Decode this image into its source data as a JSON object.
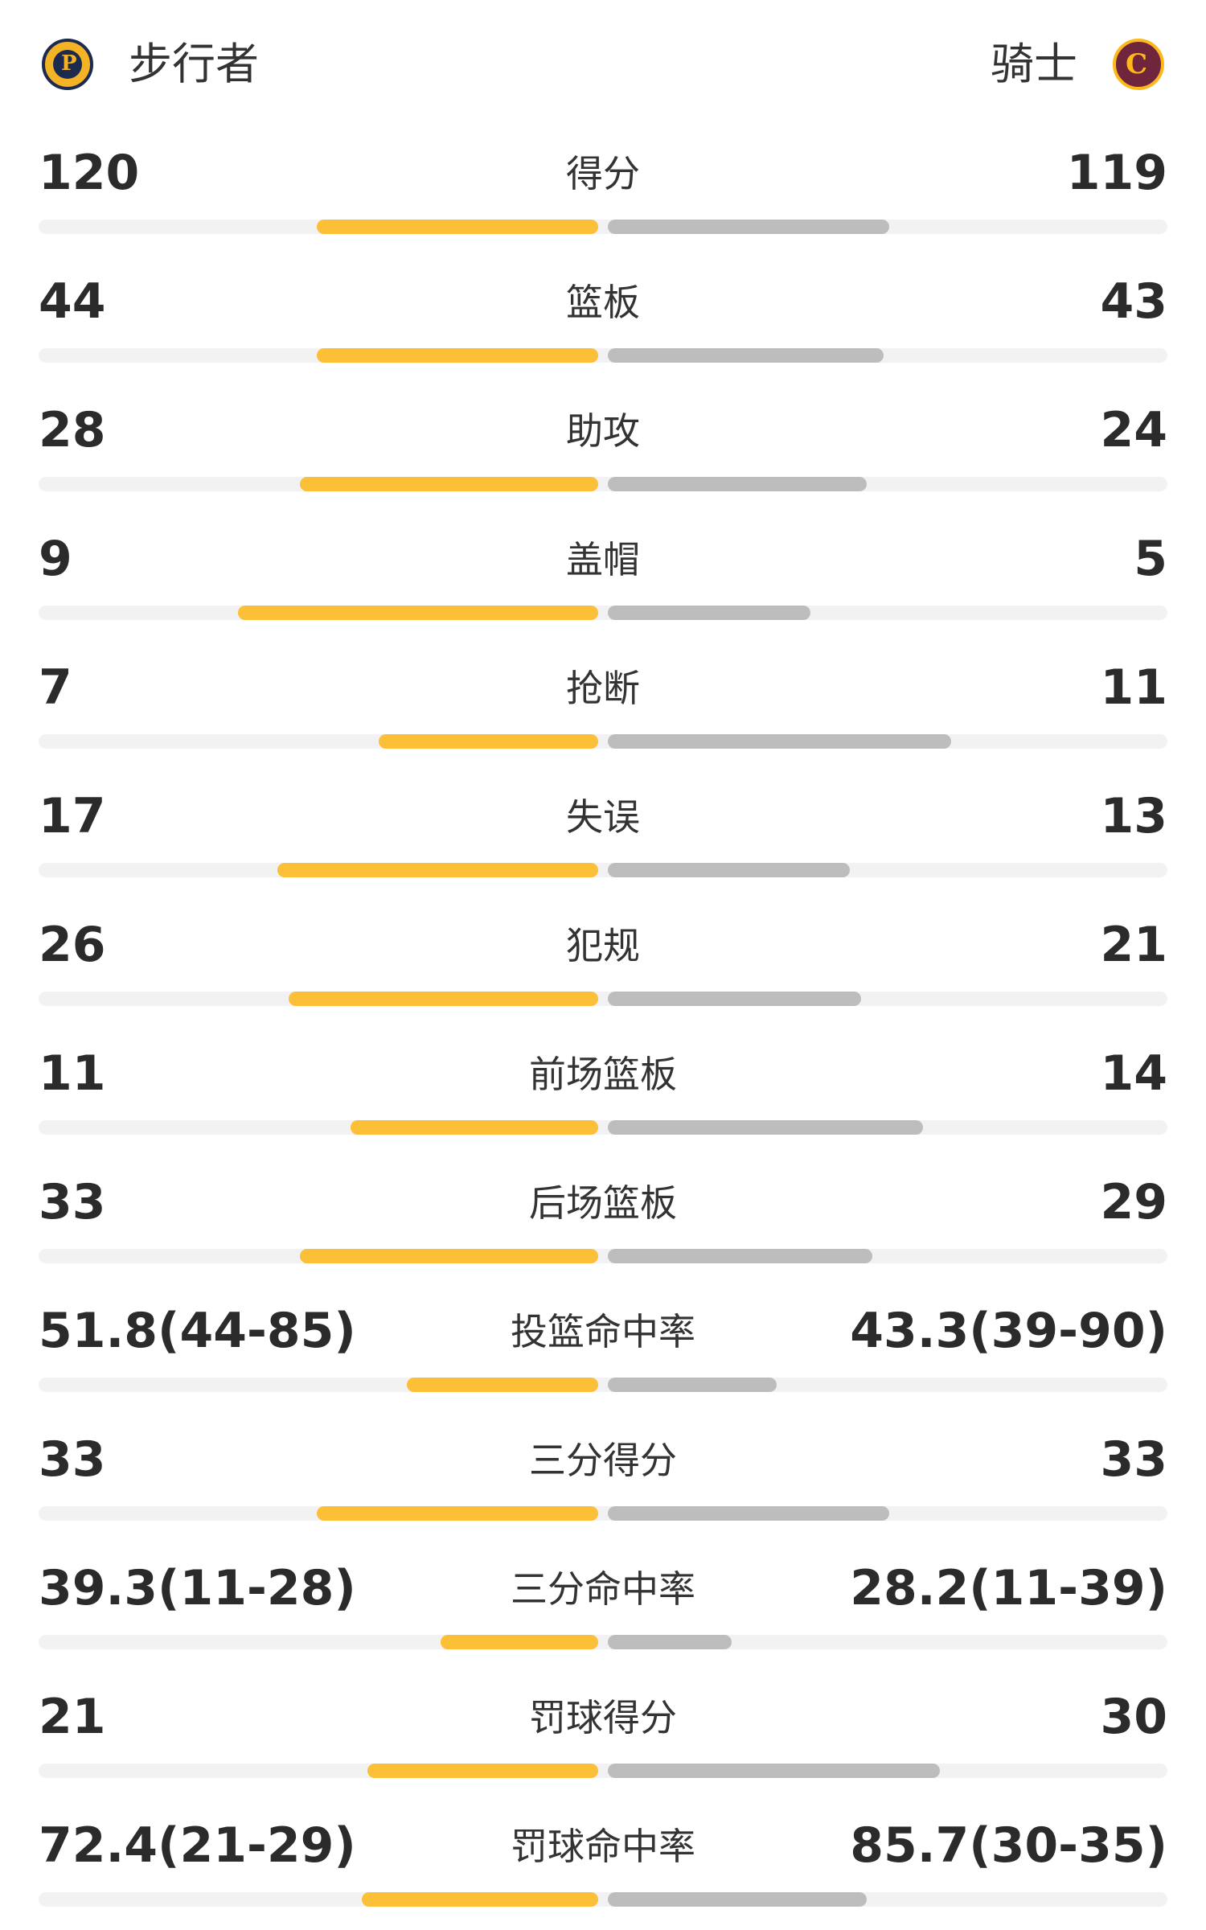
{
  "teams": {
    "home": {
      "name": "步行者",
      "logo_icon": "pacers-logo-icon",
      "color": "#fbbf38"
    },
    "away": {
      "name": "骑士",
      "logo_icon": "cavaliers-logo-icon",
      "color": "#bdbdbd"
    }
  },
  "stats": [
    {
      "label": "得分",
      "home": "120",
      "away": "119",
      "home_share": 0.5,
      "away_share": 0.5
    },
    {
      "label": "篮板",
      "home": "44",
      "away": "43",
      "home_share": 0.5,
      "away_share": 0.49
    },
    {
      "label": "助攻",
      "home": "28",
      "away": "24",
      "home_share": 0.53,
      "away_share": 0.46
    },
    {
      "label": "盖帽",
      "home": "9",
      "away": "5",
      "home_share": 0.64,
      "away_share": 0.36
    },
    {
      "label": "抢断",
      "home": "7",
      "away": "11",
      "home_share": 0.39,
      "away_share": 0.61
    },
    {
      "label": "失误",
      "home": "17",
      "away": "13",
      "home_share": 0.57,
      "away_share": 0.43
    },
    {
      "label": "犯规",
      "home": "26",
      "away": "21",
      "home_share": 0.55,
      "away_share": 0.45
    },
    {
      "label": "前场篮板",
      "home": "11",
      "away": "14",
      "home_share": 0.44,
      "away_share": 0.56
    },
    {
      "label": "后场篮板",
      "home": "33",
      "away": "29",
      "home_share": 0.53,
      "away_share": 0.47
    },
    {
      "label": "投篮命中率",
      "home": "51.8(44-85)",
      "away": "43.3(39-90)",
      "home_share": 0.34,
      "away_share": 0.3
    },
    {
      "label": "三分得分",
      "home": "33",
      "away": "33",
      "home_share": 0.5,
      "away_share": 0.5
    },
    {
      "label": "三分命中率",
      "home": "39.3(11-28)",
      "away": "28.2(11-39)",
      "home_share": 0.28,
      "away_share": 0.22
    },
    {
      "label": "罚球得分",
      "home": "21",
      "away": "30",
      "home_share": 0.41,
      "away_share": 0.59
    },
    {
      "label": "罚球命中率",
      "home": "72.4(21-29)",
      "away": "85.7(30-35)",
      "home_share": 0.42,
      "away_share": 0.46
    }
  ]
}
